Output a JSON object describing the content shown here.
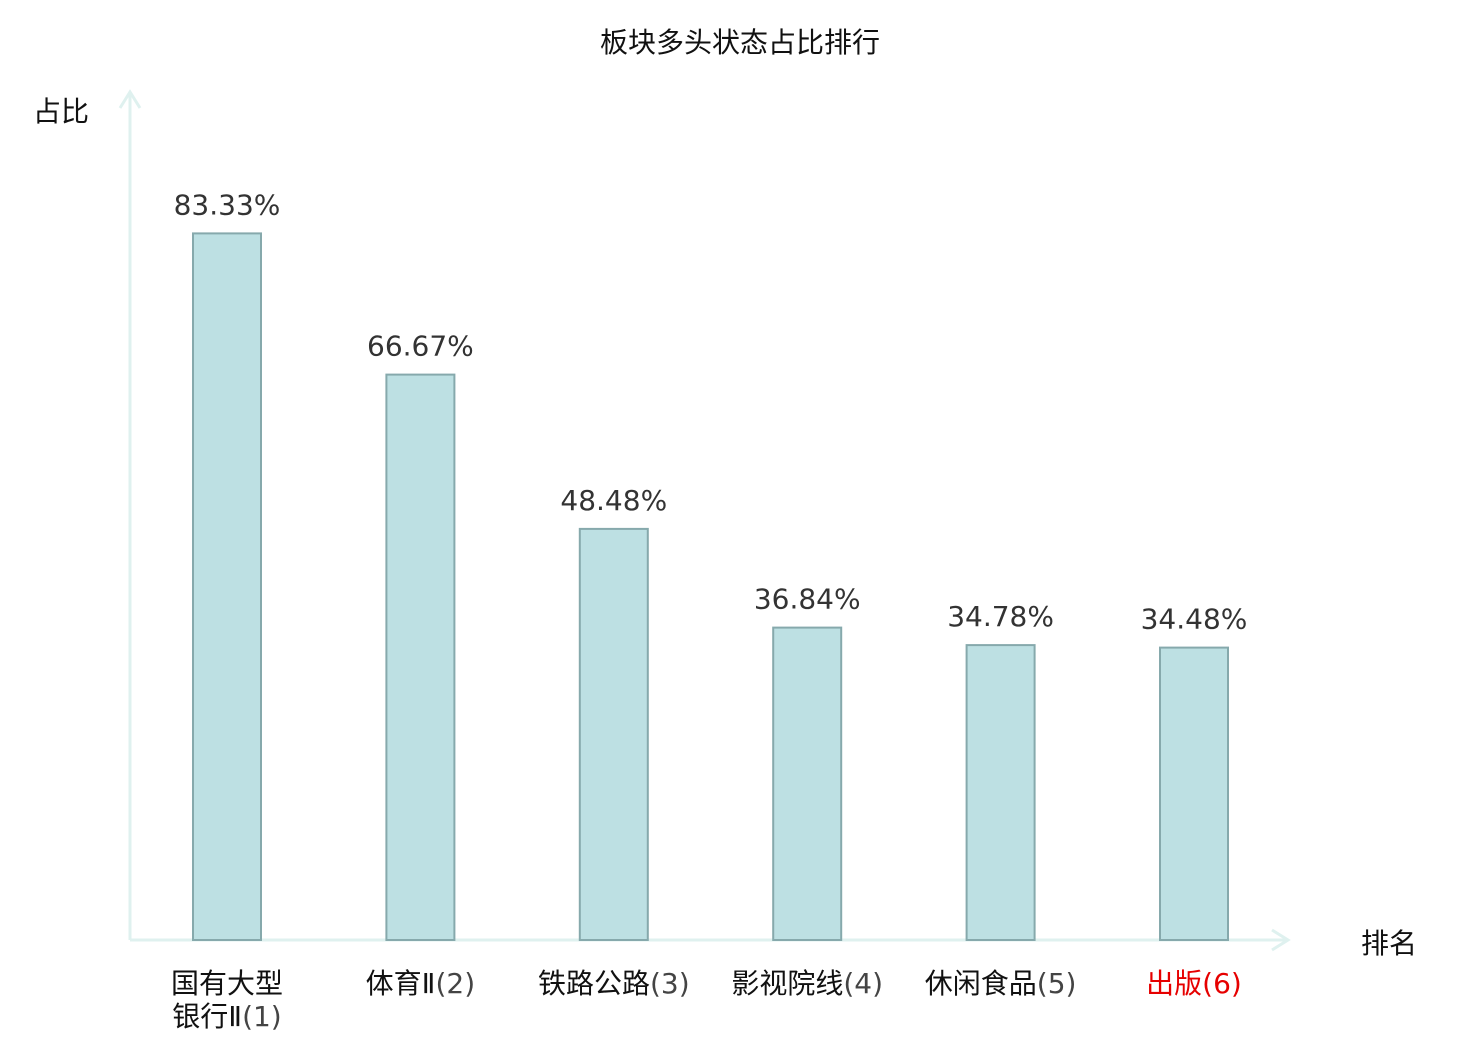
{
  "chart_data": {
    "type": "bar",
    "title": "板块多头状态占比排行",
    "ylabel": "占比",
    "xlabel": "排名",
    "categories": [
      {
        "name_lines": [
          "国有大型",
          "银行Ⅱ"
        ],
        "rank": "(1)",
        "highlight": false
      },
      {
        "name_lines": [
          "体育Ⅱ"
        ],
        "rank": "(2)",
        "highlight": false
      },
      {
        "name_lines": [
          "铁路公路"
        ],
        "rank": "(3)",
        "highlight": false
      },
      {
        "name_lines": [
          "影视院线"
        ],
        "rank": "(4)",
        "highlight": false
      },
      {
        "name_lines": [
          "休闲食品"
        ],
        "rank": "(5)",
        "highlight": false
      },
      {
        "name_lines": [
          "出版"
        ],
        "rank": "(6)",
        "highlight": true
      }
    ],
    "values": [
      83.33,
      66.67,
      48.48,
      36.84,
      34.78,
      34.48
    ],
    "value_labels": [
      "83.33%",
      "66.67%",
      "48.48%",
      "36.84%",
      "34.78%",
      "34.48%"
    ],
    "ylim": [
      0,
      100
    ],
    "grid": false,
    "colors": {
      "bar_fill": "#bde0e3",
      "bar_stroke": "#86a9ac",
      "axis": "#dff1ef",
      "label_text": "#333333",
      "title_text": "#111111",
      "highlight_text": "#e60000"
    }
  }
}
